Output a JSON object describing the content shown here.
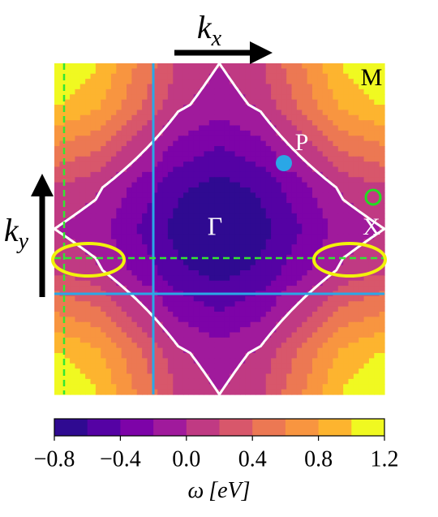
{
  "chart_data": {
    "type": "contour",
    "x_label": {
      "main": "k",
      "sub": "x"
    },
    "y_label": {
      "main": "k",
      "sub": "y"
    },
    "z": [
      [
        1.2,
        1.02,
        0.6,
        0.18,
        0,
        0.18,
        0.6,
        1.02,
        1.2
      ],
      [
        1.02,
        0.86,
        0.45,
        0.05,
        -0.12,
        0.05,
        0.45,
        0.86,
        1.02
      ],
      [
        0.6,
        0.45,
        0.1,
        -0.25,
        -0.4,
        -0.25,
        0.1,
        0.45,
        0.6
      ],
      [
        0.18,
        0.05,
        -0.25,
        -0.56,
        -0.68,
        -0.56,
        -0.25,
        0.05,
        0.18
      ],
      [
        0,
        -0.12,
        -0.4,
        -0.68,
        -0.8,
        -0.68,
        -0.4,
        -0.12,
        0
      ],
      [
        0.18,
        0.05,
        -0.25,
        -0.56,
        -0.68,
        -0.56,
        -0.25,
        0.05,
        0.18
      ],
      [
        0.6,
        0.45,
        0.1,
        -0.25,
        -0.4,
        -0.25,
        0.1,
        0.45,
        0.6
      ],
      [
        1.02,
        0.86,
        0.45,
        0.05,
        -0.12,
        0.05,
        0.45,
        0.86,
        1.02
      ],
      [
        1.2,
        1.02,
        0.6,
        0.18,
        0,
        0.18,
        0.6,
        1.02,
        1.2
      ]
    ],
    "levels": [
      -0.8,
      -0.6,
      -0.4,
      -0.2,
      0.0,
      0.2,
      0.4,
      0.6,
      0.8,
      1.0,
      1.2
    ],
    "colors": [
      "#2f0a91",
      "#5502a4",
      "#7d03a8",
      "#a01a9c",
      "#c03a83",
      "#d8576b",
      "#ec7853",
      "#f89540",
      "#fdb42f",
      "#f0f921"
    ],
    "contour_level": 0,
    "contour_color": "#ffffff",
    "clim": [
      -0.8,
      1.2
    ],
    "colorbar_ticks": [
      {
        "value": -0.8,
        "label": "−0.8"
      },
      {
        "value": -0.4,
        "label": "−0.4"
      },
      {
        "value": 0,
        "label": "0.0"
      },
      0.4,
      0.8,
      1.2
    ],
    "colorbar_label": {
      "symbol": "ω",
      "unit": "[eV]"
    },
    "annotations": {
      "M": "M",
      "P": "P",
      "Gamma": "Γ",
      "X": "X"
    }
  }
}
